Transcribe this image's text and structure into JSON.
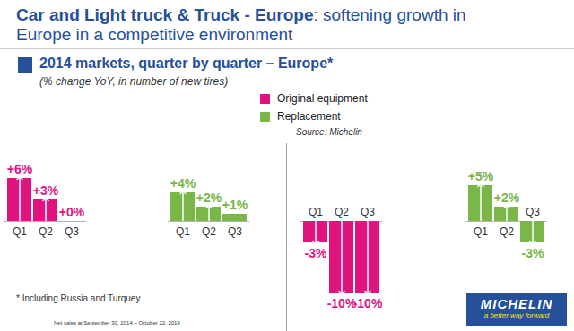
{
  "title": "Car and Light truck & Truck - Europe: softening growth in Europe in a competitive environment",
  "subtitle": "2014 markets, quarter by quarter – Europe*",
  "note": "(% change YoY, in number of new tires)",
  "source": "Source: Michelin",
  "footnote": "* Including Russia and Turquey",
  "footer": "Net sales at September 30, 2014 – October 22, 2014",
  "logo": {
    "brand": "MICHELIN",
    "tagline": "a better way forward"
  },
  "chart_data": [
    {
      "type": "bar",
      "categories": [
        "Q1",
        "Q2",
        "Q3"
      ],
      "ylim": [
        -12,
        8
      ],
      "tick_labels": false,
      "data_labels": true,
      "series": [
        {
          "name": "Original equipment",
          "color": "#e0137f",
          "values": [
            6,
            3,
            0
          ],
          "value_labels": [
            "+6%",
            "+3%",
            "+0%"
          ]
        },
        {
          "name": "Replacement",
          "color": "#7ab648",
          "values": [
            4,
            2,
            1
          ],
          "value_labels": [
            "+4%",
            "+2%",
            "+1%"
          ]
        }
      ]
    },
    {
      "type": "bar",
      "categories": [
        "Q1",
        "Q2",
        "Q3"
      ],
      "ylim": [
        -12,
        8
      ],
      "tick_labels": false,
      "data_labels": true,
      "series": [
        {
          "name": "Original equipment",
          "color": "#e0137f",
          "values": [
            -3,
            -10,
            -10
          ],
          "value_labels": [
            "-3%",
            "-10%",
            "-10%"
          ]
        },
        {
          "name": "Replacement",
          "color": "#7ab648",
          "values": [
            5,
            2,
            -3
          ],
          "value_labels": [
            "+5%",
            "+2%",
            "-3%"
          ]
        }
      ]
    }
  ]
}
